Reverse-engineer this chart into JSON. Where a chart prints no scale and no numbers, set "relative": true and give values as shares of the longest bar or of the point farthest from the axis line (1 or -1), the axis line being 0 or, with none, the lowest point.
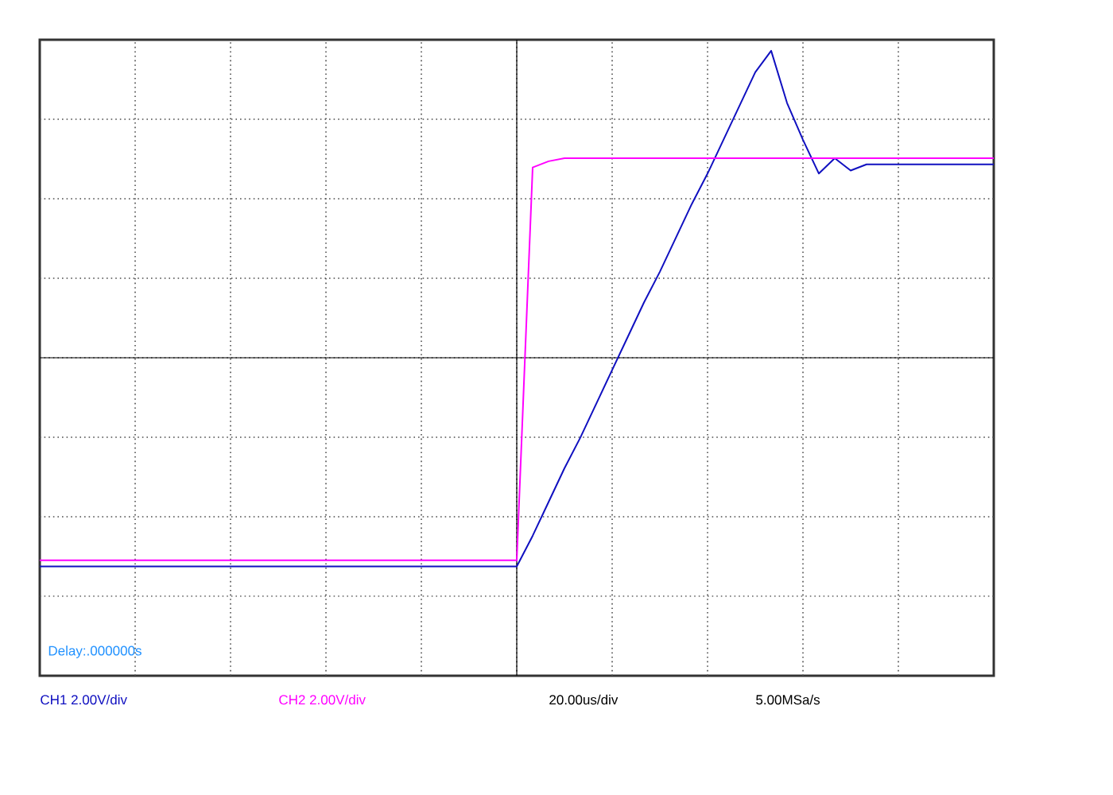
{
  "chart_data": {
    "type": "line",
    "relative": true,
    "grid": true,
    "marker": "none",
    "line_style": "solid",
    "categories": [
      null,
      null,
      null,
      null,
      null,
      null,
      null,
      null,
      null,
      null,
      null,
      null,
      null,
      null,
      null,
      null,
      null,
      null,
      null,
      null,
      null,
      null,
      null,
      null,
      null,
      null,
      null,
      null,
      null,
      null,
      null,
      null,
      null,
      null,
      null,
      null,
      null,
      null,
      null,
      null,
      null,
      null,
      null,
      null,
      null,
      null,
      null,
      null,
      null,
      null,
      null,
      null,
      null,
      null,
      null,
      null,
      null,
      null,
      null,
      null,
      null
    ],
    "series": [
      {
        "color": "#1010c0",
        "values": [
          -0.68,
          -0.68,
          -0.68,
          -0.68,
          -0.68,
          -0.68,
          -0.68,
          -0.68,
          -0.68,
          -0.68,
          -0.68,
          -0.68,
          -0.68,
          -0.68,
          -0.68,
          -0.68,
          -0.68,
          -0.68,
          -0.68,
          -0.68,
          -0.68,
          -0.68,
          -0.68,
          -0.68,
          -0.68,
          -0.68,
          -0.68,
          -0.68,
          -0.68,
          -0.68,
          -0.68,
          -0.58,
          -0.47,
          -0.36,
          -0.26,
          -0.15,
          -0.04,
          0.07,
          0.18,
          0.28,
          0.39,
          0.5,
          0.6,
          0.71,
          0.82,
          0.93,
          1.0,
          0.83,
          0.71,
          0.6,
          0.65,
          0.61,
          0.63,
          0.63,
          0.63,
          0.63,
          0.63,
          0.63,
          0.63,
          0.63,
          0.63
        ]
      },
      {
        "color": "#ff00ff",
        "values": [
          -0.66,
          -0.66,
          -0.66,
          -0.66,
          -0.66,
          -0.66,
          -0.66,
          -0.66,
          -0.66,
          -0.66,
          -0.66,
          -0.66,
          -0.66,
          -0.66,
          -0.66,
          -0.66,
          -0.66,
          -0.66,
          -0.66,
          -0.66,
          -0.66,
          -0.66,
          -0.66,
          -0.66,
          -0.66,
          -0.66,
          -0.66,
          -0.66,
          -0.66,
          -0.66,
          -0.66,
          0.62,
          0.64,
          0.65,
          0.65,
          0.65,
          0.65,
          0.65,
          0.65,
          0.65,
          0.65,
          0.65,
          0.65,
          0.65,
          0.65,
          0.65,
          0.65,
          0.65,
          0.65,
          0.65,
          0.65,
          0.65,
          0.65,
          0.65,
          0.65,
          0.65,
          0.65,
          0.65,
          0.65,
          0.65,
          0.65
        ]
      }
    ],
    "annotations": [
      "Delay:.000000s",
      "CH1 2.00V/div",
      "CH2 2.00V/div",
      "20.00us/div",
      "5.00MSa/s"
    ]
  }
}
